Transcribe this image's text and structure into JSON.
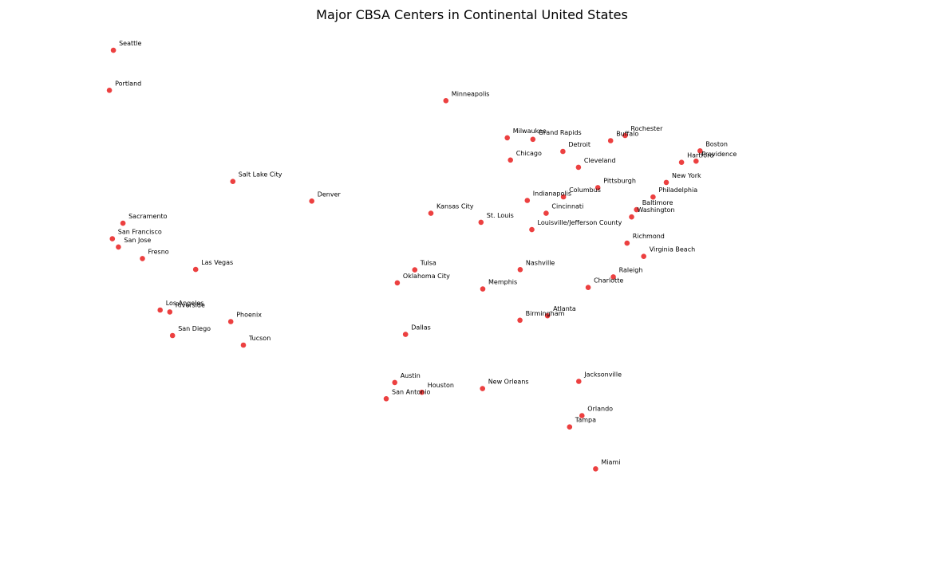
{
  "chart_data": {
    "type": "scatter",
    "title": "Major CBSA Centers in Continental United States",
    "xlabel": "",
    "ylabel": "",
    "x_unit": "longitude",
    "y_unit": "latitude",
    "axes_visible": false,
    "grid": false,
    "marker_color": "#e60000",
    "marker_opacity": 0.75,
    "points": [
      {
        "label": "Seattle",
        "x": -122.33,
        "y": 47.61
      },
      {
        "label": "Portland",
        "x": -122.68,
        "y": 45.52
      },
      {
        "label": "Minneapolis",
        "x": -93.27,
        "y": 44.98
      },
      {
        "label": "Boston",
        "x": -71.06,
        "y": 42.36
      },
      {
        "label": "Providence",
        "x": -71.41,
        "y": 41.82
      },
      {
        "label": "Hartford",
        "x": -72.68,
        "y": 41.76
      },
      {
        "label": "Rochester",
        "x": -77.61,
        "y": 43.16
      },
      {
        "label": "Buffalo",
        "x": -78.88,
        "y": 42.89
      },
      {
        "label": "Grand Rapids",
        "x": -85.67,
        "y": 42.96
      },
      {
        "label": "Detroit",
        "x": -83.05,
        "y": 42.33
      },
      {
        "label": "Milwaukee",
        "x": -87.91,
        "y": 43.04
      },
      {
        "label": "New York",
        "x": -74.01,
        "y": 40.71
      },
      {
        "label": "Chicago",
        "x": -87.63,
        "y": 41.88
      },
      {
        "label": "Cleveland",
        "x": -81.69,
        "y": 41.5
      },
      {
        "label": "Pittsburgh",
        "x": -79.99,
        "y": 40.44
      },
      {
        "label": "Philadelphia",
        "x": -75.17,
        "y": 39.95
      },
      {
        "label": "Baltimore",
        "x": -76.61,
        "y": 39.29
      },
      {
        "label": "Washington",
        "x": -77.04,
        "y": 38.91
      },
      {
        "label": "Columbus",
        "x": -83.0,
        "y": 39.96
      },
      {
        "label": "Indianapolis",
        "x": -86.16,
        "y": 39.77
      },
      {
        "label": "Cincinnati",
        "x": -84.51,
        "y": 39.1
      },
      {
        "label": "Sacramento",
        "x": -121.49,
        "y": 38.58
      },
      {
        "label": "Salt Lake City",
        "x": -111.89,
        "y": 40.76
      },
      {
        "label": "San Francisco",
        "x": -122.42,
        "y": 37.77
      },
      {
        "label": "San Jose",
        "x": -121.89,
        "y": 37.34
      },
      {
        "label": "Fresno",
        "x": -119.79,
        "y": 36.74
      },
      {
        "label": "Denver",
        "x": -104.99,
        "y": 39.74
      },
      {
        "label": "Kansas City",
        "x": -94.58,
        "y": 39.1
      },
      {
        "label": "St. Louis",
        "x": -90.2,
        "y": 38.63
      },
      {
        "label": "Louisville/Jefferson County",
        "x": -85.76,
        "y": 38.25
      },
      {
        "label": "Richmond",
        "x": -77.44,
        "y": 37.54
      },
      {
        "label": "Virginia Beach",
        "x": -75.98,
        "y": 36.85
      },
      {
        "label": "Las Vegas",
        "x": -115.14,
        "y": 36.17
      },
      {
        "label": "Raleigh",
        "x": -78.64,
        "y": 35.78
      },
      {
        "label": "Charlotte",
        "x": -80.84,
        "y": 35.23
      },
      {
        "label": "Nashville",
        "x": -86.78,
        "y": 36.16
      },
      {
        "label": "Los Angeles",
        "x": -118.24,
        "y": 34.05
      },
      {
        "label": "Riverside",
        "x": -117.4,
        "y": 33.95
      },
      {
        "label": "Tulsa",
        "x": -95.99,
        "y": 36.15
      },
      {
        "label": "Oklahoma City",
        "x": -97.52,
        "y": 35.47
      },
      {
        "label": "Memphis",
        "x": -90.05,
        "y": 35.15
      },
      {
        "label": "San Diego",
        "x": -117.16,
        "y": 32.72
      },
      {
        "label": "Atlanta",
        "x": -84.39,
        "y": 33.75
      },
      {
        "label": "Birmingham",
        "x": -86.8,
        "y": 33.52
      },
      {
        "label": "Phoenix",
        "x": -112.07,
        "y": 33.45
      },
      {
        "label": "Tucson",
        "x": -110.97,
        "y": 32.22
      },
      {
        "label": "Dallas",
        "x": -96.8,
        "y": 32.78
      },
      {
        "label": "Jacksonville",
        "x": -81.66,
        "y": 30.33
      },
      {
        "label": "Austin",
        "x": -97.74,
        "y": 30.27
      },
      {
        "label": "San Antonio",
        "x": -98.49,
        "y": 29.42
      },
      {
        "label": "Houston",
        "x": -95.37,
        "y": 29.76
      },
      {
        "label": "New Orleans",
        "x": -90.07,
        "y": 29.95
      },
      {
        "label": "Orlando",
        "x": -81.38,
        "y": 28.54
      },
      {
        "label": "Tampa",
        "x": -82.46,
        "y": 27.95
      },
      {
        "label": "Miami",
        "x": -80.19,
        "y": 25.76
      }
    ]
  }
}
